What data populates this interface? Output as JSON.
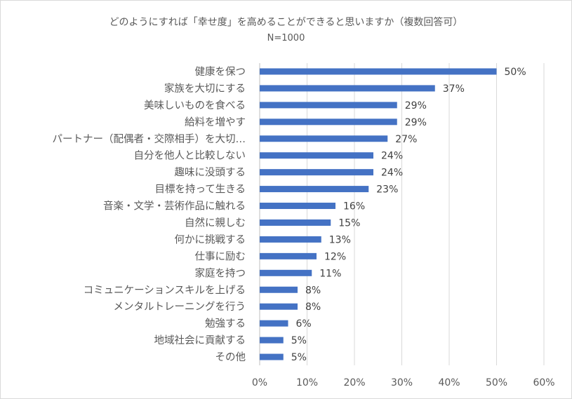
{
  "chart_data": {
    "type": "bar",
    "orientation": "horizontal",
    "title": "どのようにすれば「幸せ度」を高めることができると思いますか（複数回答可）",
    "subtitle": "N=1000",
    "xlabel": "",
    "ylabel": "",
    "xlim": [
      0,
      60
    ],
    "xticks": [
      0,
      10,
      20,
      30,
      40,
      50,
      60
    ],
    "xtick_labels": [
      "0%",
      "10%",
      "20%",
      "30%",
      "40%",
      "50%",
      "60%"
    ],
    "grid": true,
    "bar_color": "#4472c4",
    "categories": [
      "健康を保つ",
      "家族を大切にする",
      "美味しいものを食べる",
      "給料を増やす",
      "パートナー（配偶者・交際相手）を大切…",
      "自分を他人と比較しない",
      "趣味に没頭する",
      "目標を持って生きる",
      "音楽・文学・芸術作品に触れる",
      "自然に親しむ",
      "何かに挑戦する",
      "仕事に励む",
      "家庭を持つ",
      "コミュニケーションスキルを上げる",
      "メンタルトレーニングを行う",
      "勉強する",
      "地域社会に貢献する",
      "その他"
    ],
    "values": [
      50,
      37,
      29,
      29,
      27,
      24,
      24,
      23,
      16,
      15,
      13,
      12,
      11,
      8,
      8,
      6,
      5,
      5
    ],
    "value_labels": [
      "50%",
      "37%",
      "29%",
      "29%",
      "27%",
      "24%",
      "24%",
      "23%",
      "16%",
      "15%",
      "13%",
      "12%",
      "11%",
      "8%",
      "8%",
      "6%",
      "5%",
      "5%"
    ]
  }
}
